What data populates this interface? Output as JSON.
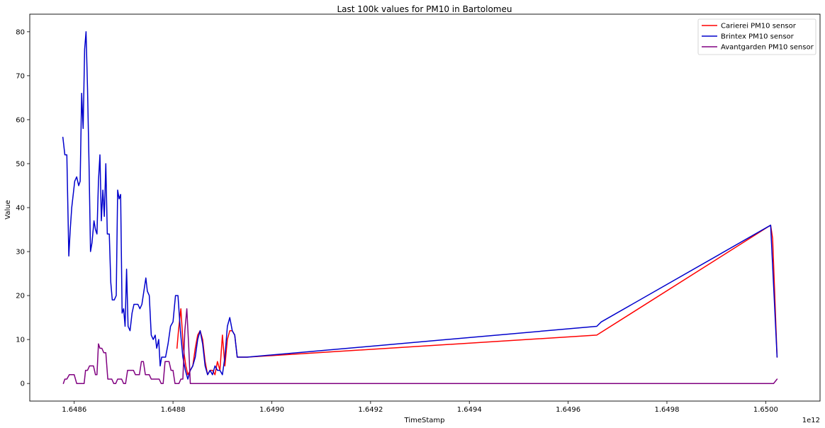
{
  "chart_data": {
    "type": "line",
    "title": "Last 100k values for PM10 in Bartolomeu",
    "xlabel": "TimeStamp",
    "ylabel": "Value",
    "x_offset_text": "1e12",
    "xlim": [
      1.64851,
      1.65011
    ],
    "ylim": [
      -4,
      84
    ],
    "x_ticks": [
      1.6486,
      1.6488,
      1.649,
      1.6492,
      1.6494,
      1.6496,
      1.6498,
      1.65
    ],
    "x_tick_labels": [
      "1.6486",
      "1.6488",
      "1.6490",
      "1.6492",
      "1.6494",
      "1.6496",
      "1.6498",
      "1.6500"
    ],
    "y_ticks": [
      0,
      10,
      20,
      30,
      40,
      50,
      60,
      70,
      80
    ],
    "y_tick_labels": [
      "0",
      "10",
      "20",
      "30",
      "40",
      "50",
      "60",
      "70",
      "80"
    ],
    "grid": false,
    "legend_position": "top-right",
    "series": [
      {
        "name": "Carierei PM10 sensor",
        "color": "#ff0000",
        "points": [
          [
            1.648808,
            8
          ],
          [
            1.648811,
            12
          ],
          [
            1.648816,
            17
          ],
          [
            1.648821,
            8
          ],
          [
            1.648826,
            4
          ],
          [
            1.64883,
            2
          ],
          [
            1.648835,
            3
          ],
          [
            1.64884,
            4
          ],
          [
            1.648845,
            8
          ],
          [
            1.64885,
            11
          ],
          [
            1.648855,
            12
          ],
          [
            1.64886,
            10
          ],
          [
            1.648865,
            5
          ],
          [
            1.64887,
            2
          ],
          [
            1.648875,
            3
          ],
          [
            1.64888,
            3
          ],
          [
            1.648885,
            2
          ],
          [
            1.64889,
            5
          ],
          [
            1.648895,
            3
          ],
          [
            1.6489,
            11
          ],
          [
            1.648905,
            4
          ],
          [
            1.64891,
            10
          ],
          [
            1.648915,
            12
          ],
          [
            1.64892,
            12
          ],
          [
            1.648925,
            11
          ],
          [
            1.64893,
            6
          ],
          [
            1.64895,
            6
          ],
          [
            1.649658,
            11
          ],
          [
            1.65001,
            36
          ],
          [
            1.650014,
            33
          ],
          [
            1.650023,
            6
          ]
        ]
      },
      {
        "name": "Brintex PM10 sensor",
        "color": "#0000cc",
        "points": [
          [
            1.648577,
            56
          ],
          [
            1.648581,
            52
          ],
          [
            1.648585,
            52
          ],
          [
            1.648589,
            29
          ],
          [
            1.648592,
            35
          ],
          [
            1.648595,
            40
          ],
          [
            1.648598,
            43
          ],
          [
            1.648601,
            46
          ],
          [
            1.648605,
            47
          ],
          [
            1.648609,
            45
          ],
          [
            1.648612,
            46
          ],
          [
            1.648615,
            66
          ],
          [
            1.648618,
            58
          ],
          [
            1.648621,
            76
          ],
          [
            1.648624,
            80
          ],
          [
            1.648627,
            67
          ],
          [
            1.64863,
            50
          ],
          [
            1.648633,
            30
          ],
          [
            1.648636,
            32
          ],
          [
            1.64864,
            37
          ],
          [
            1.648643,
            35
          ],
          [
            1.648646,
            34
          ],
          [
            1.648649,
            46
          ],
          [
            1.648652,
            52
          ],
          [
            1.648655,
            37
          ],
          [
            1.648658,
            44
          ],
          [
            1.648661,
            38
          ],
          [
            1.648664,
            50
          ],
          [
            1.648667,
            34
          ],
          [
            1.648671,
            34
          ],
          [
            1.648674,
            23
          ],
          [
            1.648677,
            19
          ],
          [
            1.648681,
            19
          ],
          [
            1.648685,
            20
          ],
          [
            1.648688,
            44
          ],
          [
            1.648691,
            42
          ],
          [
            1.648694,
            43
          ],
          [
            1.648697,
            16
          ],
          [
            1.6487,
            17
          ],
          [
            1.648703,
            13
          ],
          [
            1.648706,
            26
          ],
          [
            1.648709,
            13
          ],
          [
            1.648713,
            12
          ],
          [
            1.648717,
            16
          ],
          [
            1.648721,
            18
          ],
          [
            1.648725,
            18
          ],
          [
            1.648729,
            18
          ],
          [
            1.648733,
            17
          ],
          [
            1.648737,
            18
          ],
          [
            1.648741,
            21
          ],
          [
            1.648745,
            24
          ],
          [
            1.648748,
            21
          ],
          [
            1.648752,
            20
          ],
          [
            1.648756,
            11
          ],
          [
            1.64876,
            10
          ],
          [
            1.648764,
            11
          ],
          [
            1.648767,
            8
          ],
          [
            1.648771,
            10
          ],
          [
            1.648774,
            4
          ],
          [
            1.648777,
            6
          ],
          [
            1.64878,
            6
          ],
          [
            1.648785,
            6
          ],
          [
            1.64879,
            9
          ],
          [
            1.648795,
            13
          ],
          [
            1.6488,
            14
          ],
          [
            1.648805,
            20
          ],
          [
            1.64881,
            20
          ],
          [
            1.648815,
            12
          ],
          [
            1.64882,
            6
          ],
          [
            1.648825,
            3
          ],
          [
            1.64883,
            1
          ],
          [
            1.648835,
            3
          ],
          [
            1.64884,
            4
          ],
          [
            1.648845,
            6
          ],
          [
            1.64885,
            10
          ],
          [
            1.648855,
            12
          ],
          [
            1.64886,
            9
          ],
          [
            1.648865,
            4
          ],
          [
            1.64887,
            2
          ],
          [
            1.648875,
            3
          ],
          [
            1.64888,
            2
          ],
          [
            1.648885,
            4
          ],
          [
            1.64889,
            3
          ],
          [
            1.648895,
            3
          ],
          [
            1.6489,
            2
          ],
          [
            1.648905,
            6
          ],
          [
            1.64891,
            13
          ],
          [
            1.648915,
            15
          ],
          [
            1.64892,
            12
          ],
          [
            1.648925,
            11
          ],
          [
            1.64893,
            6
          ],
          [
            1.64895,
            6
          ],
          [
            1.649658,
            13
          ],
          [
            1.649667,
            14
          ],
          [
            1.65001,
            36
          ],
          [
            1.650023,
            6
          ]
        ]
      },
      {
        "name": "Avantgarden PM10 sensor",
        "color": "#800080",
        "points": [
          [
            1.648578,
            0
          ],
          [
            1.648581,
            1
          ],
          [
            1.648585,
            1
          ],
          [
            1.64859,
            2
          ],
          [
            1.648595,
            2
          ],
          [
            1.6486,
            2
          ],
          [
            1.648605,
            0
          ],
          [
            1.64861,
            0
          ],
          [
            1.648615,
            0
          ],
          [
            1.64862,
            0
          ],
          [
            1.648623,
            3
          ],
          [
            1.648627,
            3
          ],
          [
            1.648631,
            4
          ],
          [
            1.648635,
            4
          ],
          [
            1.648639,
            4
          ],
          [
            1.648643,
            2
          ],
          [
            1.648646,
            2
          ],
          [
            1.648649,
            9
          ],
          [
            1.648652,
            8
          ],
          [
            1.648656,
            8
          ],
          [
            1.64866,
            7
          ],
          [
            1.648664,
            7
          ],
          [
            1.648668,
            1
          ],
          [
            1.648672,
            1
          ],
          [
            1.648676,
            1
          ],
          [
            1.64868,
            0
          ],
          [
            1.648684,
            0
          ],
          [
            1.648688,
            1
          ],
          [
            1.648692,
            1
          ],
          [
            1.648696,
            1
          ],
          [
            1.6487,
            0
          ],
          [
            1.648704,
            0
          ],
          [
            1.648708,
            3
          ],
          [
            1.648712,
            3
          ],
          [
            1.648716,
            3
          ],
          [
            1.64872,
            3
          ],
          [
            1.648724,
            2
          ],
          [
            1.648728,
            2
          ],
          [
            1.648732,
            2
          ],
          [
            1.648736,
            5
          ],
          [
            1.64874,
            5
          ],
          [
            1.648744,
            2
          ],
          [
            1.648748,
            2
          ],
          [
            1.648752,
            2
          ],
          [
            1.648756,
            1
          ],
          [
            1.64876,
            1
          ],
          [
            1.648764,
            1
          ],
          [
            1.648768,
            1
          ],
          [
            1.648772,
            1
          ],
          [
            1.648776,
            0
          ],
          [
            1.64878,
            0
          ],
          [
            1.648784,
            5
          ],
          [
            1.648788,
            5
          ],
          [
            1.648792,
            5
          ],
          [
            1.648796,
            3
          ],
          [
            1.6488,
            3
          ],
          [
            1.648804,
            0
          ],
          [
            1.648808,
            0
          ],
          [
            1.648812,
            0
          ],
          [
            1.648816,
            1
          ],
          [
            1.64882,
            1
          ],
          [
            1.648824,
            12
          ],
          [
            1.648828,
            17
          ],
          [
            1.648832,
            8
          ],
          [
            1.648835,
            0
          ],
          [
            1.65,
            0
          ],
          [
            1.650016,
            0
          ],
          [
            1.650023,
            1
          ]
        ]
      }
    ]
  }
}
